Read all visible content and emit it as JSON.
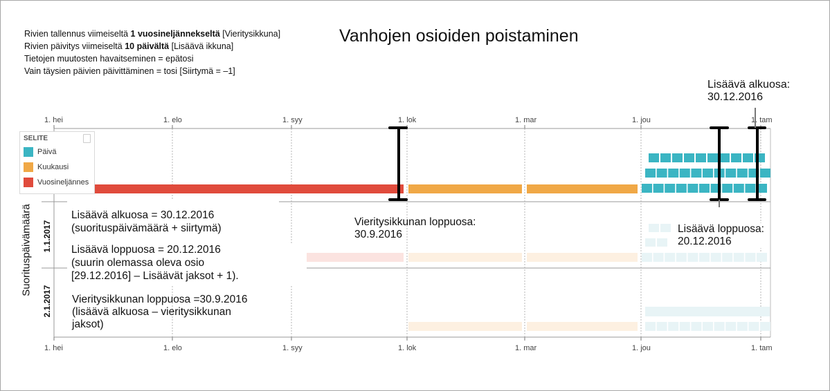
{
  "title": "Vanhojen osioiden poistaminen",
  "settings": [
    {
      "pre": "Rivien tallennus viimeiseltä ",
      "bold": "1 vuosineljännekseltä",
      "post": " [Vieritysikkuna]"
    },
    {
      "pre": "Rivien päivitys viimeiseltä ",
      "bold": "10 päivältä",
      "post": " [Lisäävä ikkuna]"
    },
    {
      "pre": "Tietojen muutosten havaitseminen = epätosi",
      "bold": "",
      "post": ""
    },
    {
      "pre": "Vain täysien päivien päivittäminen = tosi [Siirtymä = –1]",
      "bold": "",
      "post": ""
    }
  ],
  "axis": {
    "top_ticks": [
      "1. hei",
      "1. elo",
      "1. syy",
      "1. lok",
      "1. mar",
      "1. jou",
      "1. tam"
    ],
    "bottom_ticks": [
      "1. hei",
      "1. elo",
      "1. syy",
      "1. lok",
      "1. mar",
      "1. jou",
      "1. tam"
    ]
  },
  "legend": {
    "title": "SELITE",
    "items": [
      {
        "label": "Päivä",
        "color": "#3bb5c3"
      },
      {
        "label": "Kuukausi",
        "color": "#f0a846"
      },
      {
        "label": "Vuosineljännes",
        "color": "#e04b3c"
      }
    ]
  },
  "y_axis_label": "Suorituspäivämäärä",
  "row_labels": [
    "1.1.2017",
    "2.1.2017"
  ],
  "notes": {
    "incremental_start": [
      "Lisäävä alkuosa = 30.12.2016",
      "(suorituspäivämäärä + siirtymä)"
    ],
    "incremental_end": [
      "Lisäävä loppuosa = 20.12.2016",
      "(suurin olemassa oleva osio",
      "[29.12.2016] – Lisäävät jaksot + 1)."
    ],
    "rolling_end": [
      "Vieritysikkunan loppuosa =30.9.2016",
      "(lisäävä alkuosa – vieritysikkunan",
      "jaksot)"
    ]
  },
  "annotations": {
    "top_right": [
      "Lisäävä alkuosa:",
      "30.12.2016"
    ],
    "rolling_mid": [
      "Vieritysikkunan loppuosa:",
      "30.9.2016"
    ],
    "incremental_end_right": [
      "Lisäävä loppuosa:",
      "20.12.2016"
    ]
  },
  "colors": {
    "day": "#3bb5c3",
    "month": "#f0a846",
    "quarter": "#e04b3c",
    "grid": "#b5b5b5",
    "marker": "#000000"
  }
}
